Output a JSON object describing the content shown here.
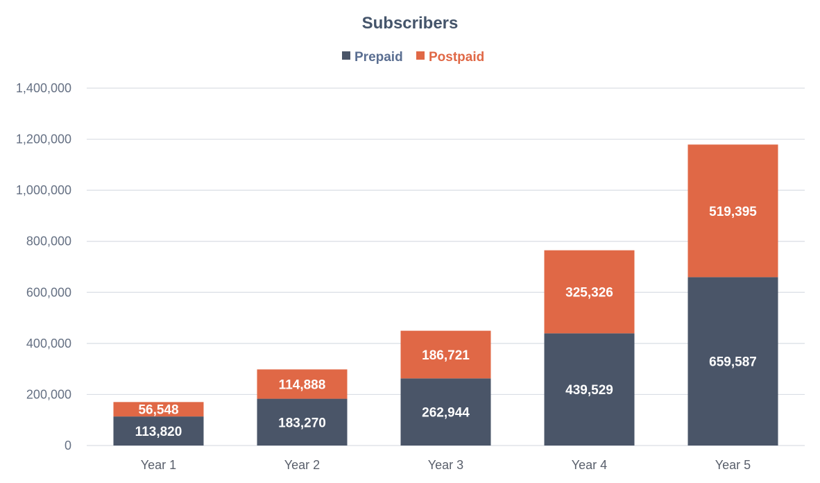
{
  "chart_data": {
    "type": "bar",
    "stacked": true,
    "title": "Subscribers",
    "xlabel": "",
    "ylabel": "",
    "categories": [
      "Year 1",
      "Year 2",
      "Year 3",
      "Year 4",
      "Year 5"
    ],
    "series": [
      {
        "name": "Prepaid",
        "color": "#4a5568",
        "values": [
          113820,
          183270,
          262944,
          439529,
          659587
        ],
        "labels": [
          "113,820",
          "183,270",
          "262,944",
          "439,529",
          "659,587"
        ]
      },
      {
        "name": "Postpaid",
        "color": "#e06846",
        "values": [
          56548,
          114888,
          186721,
          325326,
          519395
        ],
        "labels": [
          "56,548",
          "114,888",
          "186,721",
          "325,326",
          "519,395"
        ]
      }
    ],
    "ylim": [
      0,
      1400000
    ],
    "yticks": [
      0,
      200000,
      400000,
      600000,
      800000,
      1000000,
      1200000,
      1400000
    ],
    "ytick_labels": [
      "0",
      "200,000",
      "400,000",
      "600,000",
      "800,000",
      "1,000,000",
      "1,200,000",
      "1,400,000"
    ],
    "grid": true,
    "legend_position": "top-center"
  },
  "colors": {
    "title": "#44546a",
    "prepaid_legend_text": "#5a6e91",
    "postpaid_legend_text": "#e06846",
    "grid": "#d9dde4",
    "tick_text": "#657083",
    "data_label": "#ffffff"
  }
}
